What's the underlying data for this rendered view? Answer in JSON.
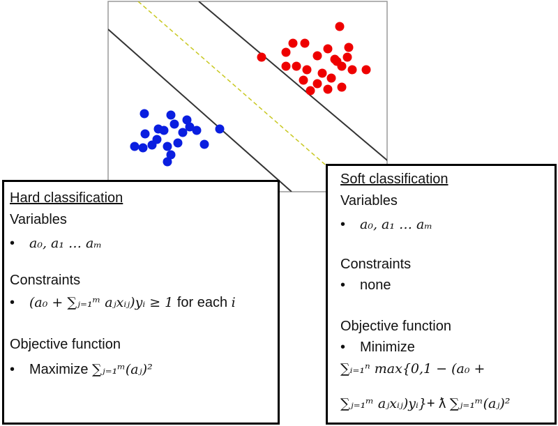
{
  "hard": {
    "title": "Hard classification",
    "variables_heading": "Variables",
    "variables": "a₀, a₁ … aₘ",
    "constraints_heading": "Constraints",
    "constraint_math": "(a₀ + ∑ⱼ₌₁ᵐ aⱼxᵢⱼ)yᵢ ≥ 1",
    "constraint_text": "for each",
    "constraint_index": "i",
    "objective_heading": "Objective function",
    "objective_text": "Maximize",
    "objective_math": "∑ⱼ₌₁ᵐ(aⱼ)²"
  },
  "soft": {
    "title": "Soft classification",
    "variables_heading": "Variables",
    "variables": "a₀, a₁ … aₘ",
    "constraints_heading": "Constraints",
    "constraint": "none",
    "objective_heading": "Objective function",
    "objective_text": "Minimize",
    "objective_line1": "∑ᵢ₌₁ⁿ max{0,1 − (a₀ +",
    "objective_line2_math": "∑ⱼ₌₁ᵐ aⱼxᵢⱼ)yᵢ}",
    "objective_line2_plus": "+ ƛ",
    "objective_line2_tail": "∑ⱼ₌₁ᵐ(aⱼ)²"
  }
}
